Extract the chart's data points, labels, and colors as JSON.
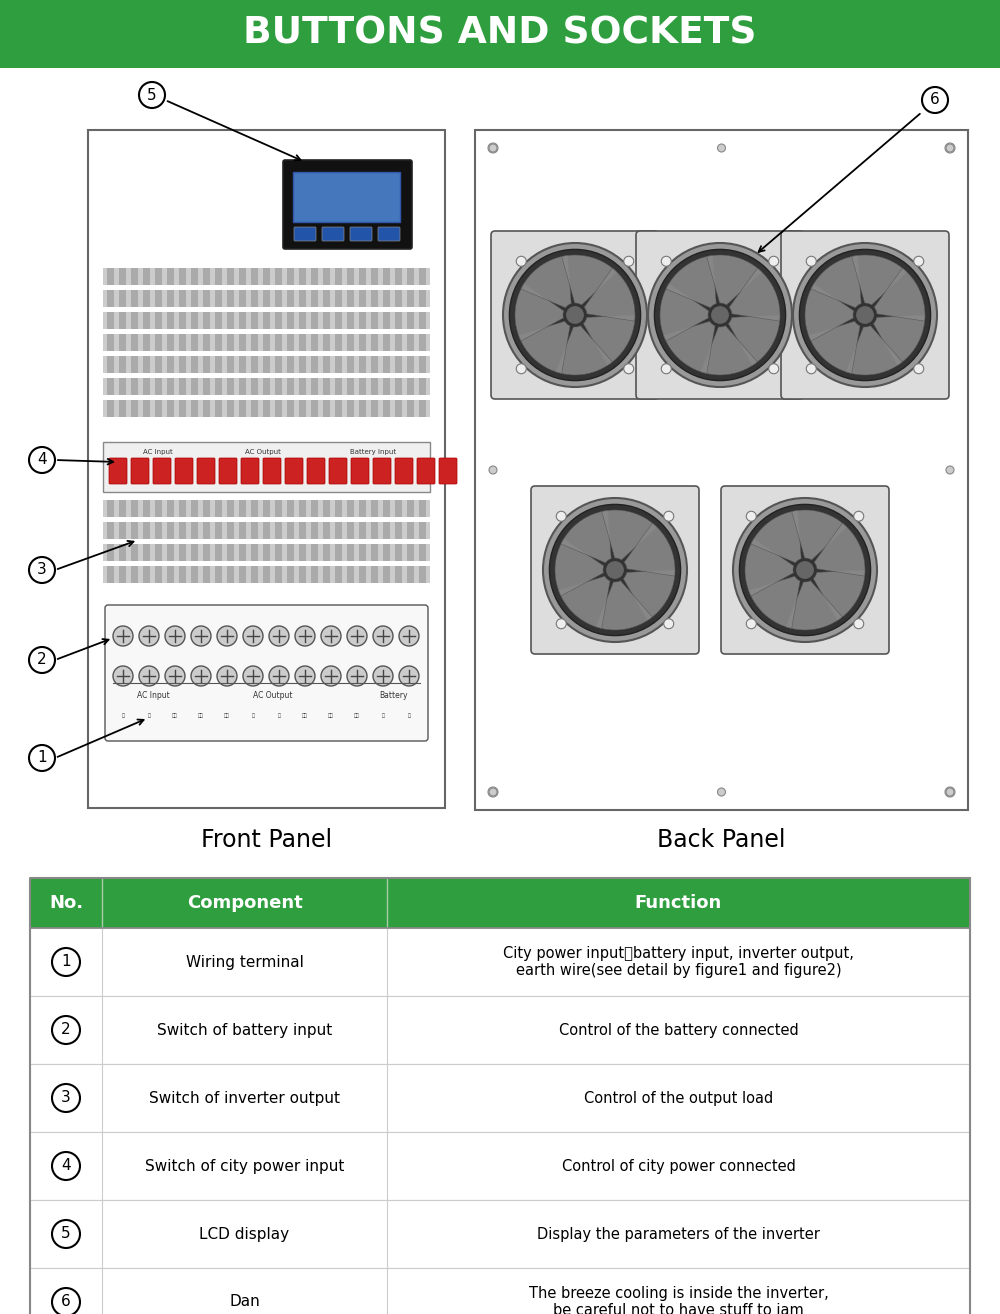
{
  "title": "BUTTONS AND SOCKETS",
  "title_bg": "#2e9e3e",
  "title_color": "#ffffff",
  "bg_color": "#ffffff",
  "green_color": "#2e9e3e",
  "table_header": [
    "No.",
    "Component",
    "Function"
  ],
  "table_rows": [
    [
      "1",
      "Wiring terminal",
      "City power input、battery input, inverter output,\nearth wire(see detail by figure1 and figure2)"
    ],
    [
      "2",
      "Switch of battery input",
      "Control of the battery connected"
    ],
    [
      "3",
      "Switch of inverter output",
      "Control of the output load"
    ],
    [
      "4",
      "Switch of city power input",
      "Control of city power connected"
    ],
    [
      "5",
      "LCD display",
      "Display the parameters of the inverter"
    ],
    [
      "6",
      "Dan",
      "The breeze cooling is inside the inverter,\nbe careful not to have stuff to jam"
    ]
  ],
  "front_panel_label": "Front Panel",
  "back_panel_label": "Back Panel"
}
